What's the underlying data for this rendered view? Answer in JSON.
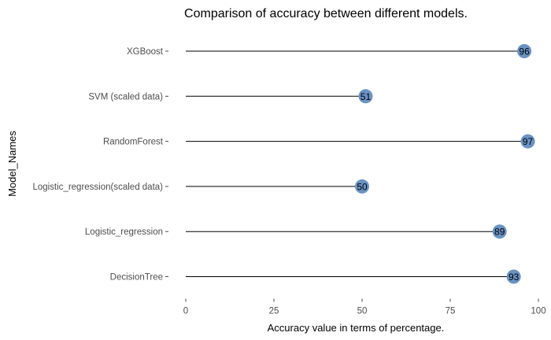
{
  "chart_data": {
    "type": "lollipop",
    "title": "Comparison of accuracy between different models.",
    "xlabel": "Accuracy value in terms of percentage.",
    "ylabel": "Model_Names",
    "xlim": [
      0,
      100
    ],
    "x_ticks": [
      0,
      25,
      50,
      75,
      100
    ],
    "categories": [
      "XGBoost",
      "SVM (scaled data)",
      "RandomForest",
      "Logistic_regression(scaled data)",
      "Logistic_regression",
      "DecisionTree"
    ],
    "values": [
      96,
      51,
      97,
      50,
      89,
      93
    ],
    "grid": false,
    "legend": "none",
    "colors": {
      "point": "#6a93c4",
      "stem": "#000000",
      "text": "#4d4d4d"
    }
  }
}
